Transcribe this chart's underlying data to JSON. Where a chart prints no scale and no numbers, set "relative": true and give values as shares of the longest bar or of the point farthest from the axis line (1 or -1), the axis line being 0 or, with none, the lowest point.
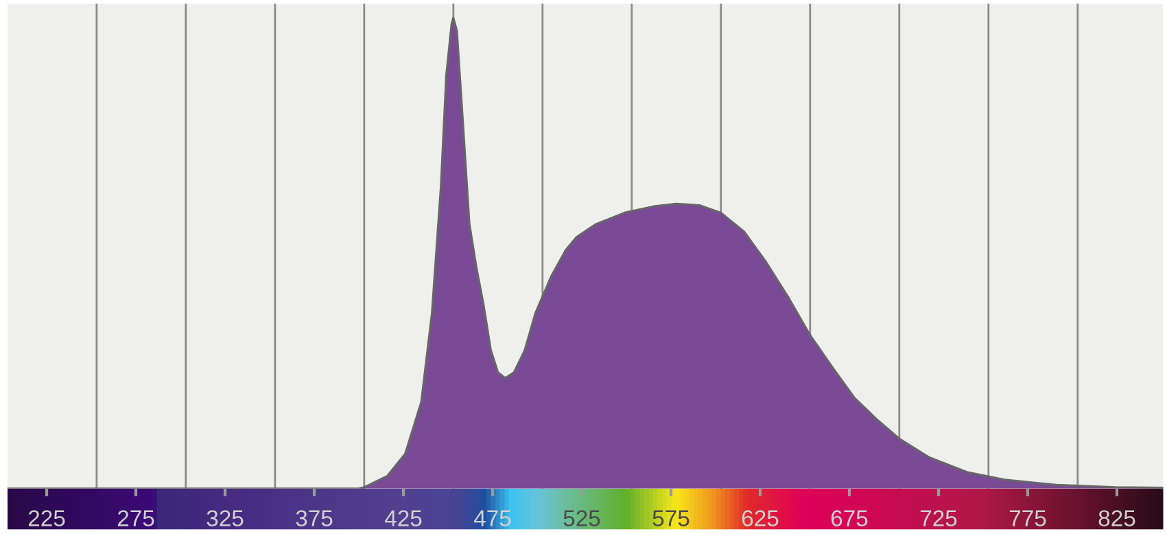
{
  "chart_data": {
    "type": "area",
    "relative": true,
    "x": [
      203,
      400,
      403,
      416,
      426,
      435,
      441,
      446,
      449,
      452,
      453,
      455,
      458,
      462,
      466,
      470,
      474,
      478,
      482,
      487,
      493,
      499,
      508,
      516,
      522,
      533,
      549,
      566,
      578,
      591,
      603,
      616,
      628,
      641,
      653,
      666,
      678,
      691,
      703,
      720,
      741,
      762,
      791,
      824,
      851
    ],
    "series": [
      {
        "color": "#7a4a96",
        "values": [
          0,
          0,
          0.003,
          0.027,
          0.074,
          0.184,
          0.373,
          0.641,
          0.877,
          0.987,
          1.0,
          0.972,
          0.798,
          0.562,
          0.468,
          0.389,
          0.294,
          0.247,
          0.235,
          0.247,
          0.294,
          0.373,
          0.452,
          0.507,
          0.534,
          0.562,
          0.586,
          0.6,
          0.605,
          0.602,
          0.586,
          0.546,
          0.483,
          0.405,
          0.326,
          0.255,
          0.192,
          0.145,
          0.106,
          0.066,
          0.035,
          0.019,
          0.008,
          0.003,
          0.002
        ]
      }
    ],
    "xlim": [
      203,
      851
    ],
    "xticks": [
      225,
      {
        "value": 253,
        "label": null
      },
      275,
      {
        "value": 303,
        "label": null
      },
      325,
      {
        "value": 353,
        "label": null
      },
      375,
      {
        "value": 403,
        "label": null
      },
      425,
      {
        "value": 453,
        "label": null
      },
      475,
      {
        "value": 503,
        "label": null
      },
      525,
      {
        "value": 553,
        "label": null
      },
      575,
      {
        "value": 603,
        "label": null
      },
      625,
      {
        "value": 653,
        "label": null
      },
      675,
      {
        "value": 703,
        "label": null
      },
      725,
      {
        "value": 753,
        "label": null
      },
      775,
      {
        "value": 803,
        "label": null
      },
      825
    ],
    "grid": "x"
  }
}
